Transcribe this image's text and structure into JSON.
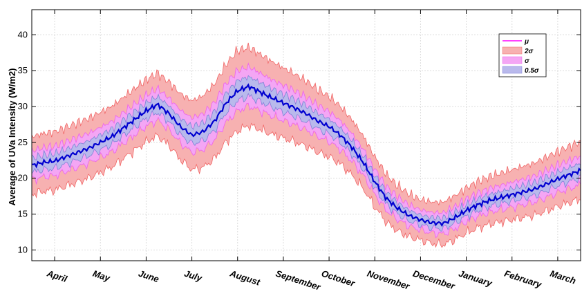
{
  "chart_data": {
    "type": "area",
    "ylabel": "Average of UVa Intensity (W/m2)",
    "xlabel": "",
    "ylim": [
      8.5,
      43.5
    ],
    "yticks": [
      10,
      15,
      20,
      25,
      30,
      35,
      40
    ],
    "grid": true,
    "legend_position": "top-right",
    "x_categories": [
      "April",
      "May",
      "June",
      "July",
      "August",
      "September",
      "October",
      "November",
      "December",
      "January",
      "February",
      "March"
    ],
    "x_tick_positions": [
      0.5,
      1.5,
      2.5,
      3.5,
      4.5,
      5.5,
      6.5,
      7.5,
      8.5,
      9.5,
      10.5,
      11.5
    ],
    "xlim": [
      0,
      12
    ],
    "mean_series": {
      "name": "μ",
      "x": [
        0,
        0.25,
        0.5,
        0.75,
        1,
        1.25,
        1.5,
        1.75,
        2,
        2.25,
        2.5,
        2.75,
        3,
        3.25,
        3.5,
        3.75,
        4,
        4.25,
        4.5,
        4.75,
        5,
        5.25,
        5.5,
        5.75,
        6,
        6.25,
        6.5,
        6.75,
        7,
        7.25,
        7.5,
        7.75,
        8,
        8.25,
        8.5,
        8.75,
        9,
        9.25,
        9.5,
        9.75,
        10,
        10.25,
        10.5,
        10.75,
        11,
        11.25,
        11.5,
        11.75,
        12
      ],
      "y": [
        21.8,
        22.2,
        22.4,
        23.0,
        23.6,
        24.2,
        25.0,
        25.8,
        27.0,
        28.2,
        29.4,
        30.3,
        29.0,
        27.2,
        26.0,
        26.5,
        28.0,
        30.5,
        32.2,
        32.8,
        32.0,
        31.2,
        30.5,
        29.8,
        29.0,
        28.0,
        27.2,
        26.0,
        24.3,
        22.2,
        19.5,
        17.2,
        15.8,
        14.8,
        14.2,
        13.8,
        13.7,
        14.5,
        15.5,
        16.3,
        16.9,
        17.3,
        17.7,
        18.1,
        18.5,
        19.2,
        19.9,
        20.5,
        21.1
      ]
    },
    "bands": [
      {
        "name": "2σ",
        "k": 2,
        "color": "#f7b1b1",
        "edge": "#f06464"
      },
      {
        "name": "σ",
        "k": 1,
        "color": "#f4a6f4",
        "edge": "#ee60ee"
      },
      {
        "name": "0.5σ",
        "k": 0.5,
        "color": "#b9b9ec",
        "edge": "#8080d8"
      }
    ],
    "sigma": {
      "x": [
        0,
        3,
        4.5,
        8.5,
        12
      ],
      "y": [
        2.0,
        2.2,
        2.8,
        1.4,
        2.0
      ]
    },
    "colors": {
      "mean": "#0000d0",
      "mean_legend": "#ff00ff"
    }
  }
}
